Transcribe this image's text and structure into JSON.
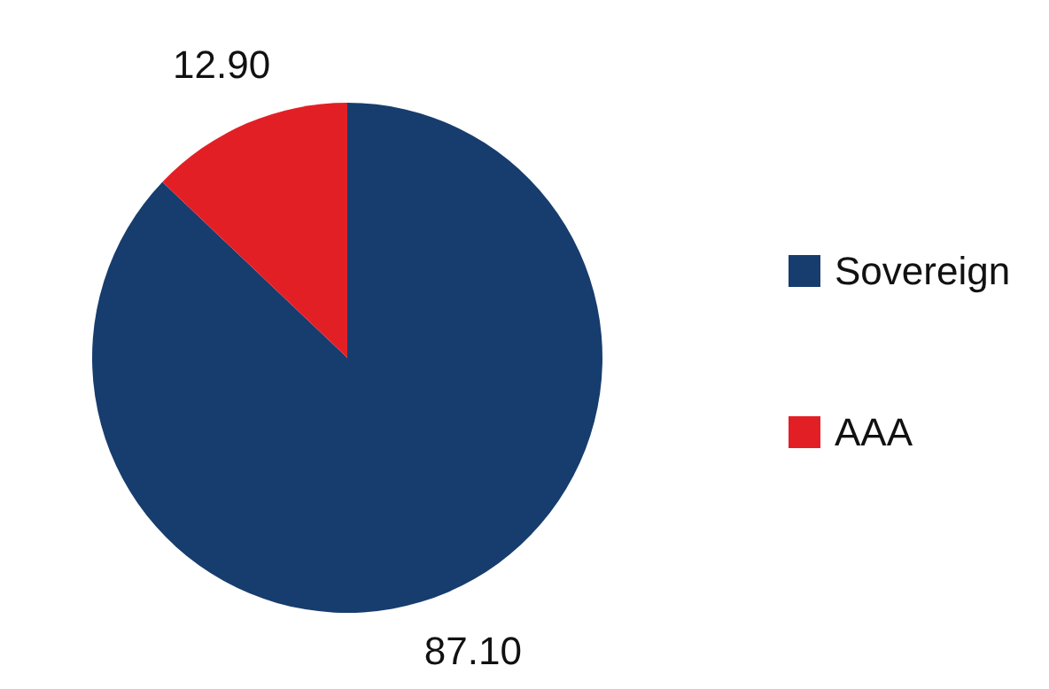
{
  "chart_data": {
    "type": "pie",
    "categories": [
      "Sovereign",
      "AAA"
    ],
    "values": [
      87.1,
      12.9
    ],
    "colors": [
      "#173d6e",
      "#e31f26"
    ],
    "value_labels": [
      "87.10",
      "12.90"
    ],
    "legend": "right"
  }
}
